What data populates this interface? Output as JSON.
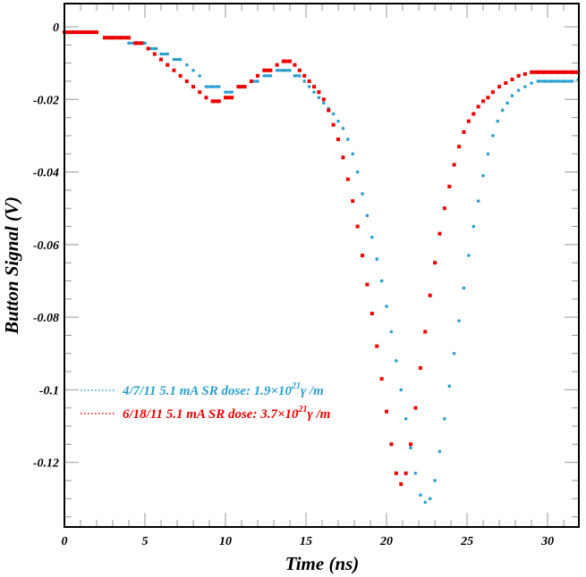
{
  "chart_data": {
    "type": "scatter",
    "title": "",
    "xlabel": "Time (ns)",
    "ylabel": "Button Signal (V)",
    "xlim": [
      0,
      31.94
    ],
    "ylim": [
      -0.1378,
      0.0064
    ],
    "x_ticks": [
      0,
      5,
      10,
      15,
      20,
      25,
      30
    ],
    "x_tick_labels": [
      "0",
      "5",
      "10",
      "15",
      "20",
      "25",
      "30"
    ],
    "y_ticks": [
      0,
      -0.02,
      -0.04,
      -0.06,
      -0.08,
      -0.1,
      -0.12
    ],
    "y_tick_labels": [
      "0",
      "-0.02",
      "-0.04",
      "-0.06",
      "-0.08",
      "-0.1",
      "-0.12"
    ],
    "grid": false,
    "legend_position": "lower-left",
    "series": [
      {
        "name": "4/7/11 5.1 mA  SR dose: 1.9×10^21 γ /m",
        "legend": {
          "prefix": "4/7/11 5.1 mA  SR dose: 1.9×10",
          "sup": "21",
          "suffix": "γ /m"
        },
        "color": "#2a9fcf",
        "marker": "dot",
        "x": [
          0,
          0.5,
          1,
          1.5,
          2,
          2.5,
          3,
          3.5,
          4,
          4.5,
          5,
          5.3,
          5.7,
          6,
          6.4,
          6.8,
          7.2,
          7.6,
          8,
          8.4,
          8.8,
          9.2,
          9.6,
          10,
          10.4,
          10.8,
          11.2,
          11.6,
          12,
          12.4,
          12.8,
          13.2,
          13.6,
          14,
          14.3,
          14.6,
          14.9,
          15.2,
          15.5,
          15.8,
          16.1,
          16.4,
          16.7,
          17,
          17.3,
          17.6,
          17.9,
          18.2,
          18.5,
          18.8,
          19.1,
          19.4,
          19.7,
          20,
          20.3,
          20.6,
          20.9,
          21.2,
          21.5,
          21.8,
          22.1,
          22.4,
          22.7,
          23,
          23.3,
          23.6,
          23.9,
          24.2,
          24.5,
          24.8,
          25.1,
          25.4,
          25.7,
          26,
          26.3,
          26.6,
          26.9,
          27.2,
          27.5,
          27.8,
          28.2,
          28.6,
          29,
          29.4,
          29.8,
          30.2,
          30.6,
          31,
          31.5,
          31.9
        ],
        "y": [
          -0.0015,
          -0.0015,
          -0.0015,
          -0.0015,
          -0.0015,
          -0.003,
          -0.003,
          -0.003,
          -0.0045,
          -0.0045,
          -0.0045,
          -0.006,
          -0.006,
          -0.0075,
          -0.0075,
          -0.009,
          -0.009,
          -0.0105,
          -0.012,
          -0.0135,
          -0.0165,
          -0.0165,
          -0.0165,
          -0.018,
          -0.018,
          -0.0165,
          -0.0165,
          -0.015,
          -0.015,
          -0.0135,
          -0.0135,
          -0.012,
          -0.012,
          -0.012,
          -0.0135,
          -0.0135,
          -0.015,
          -0.0165,
          -0.018,
          -0.0195,
          -0.021,
          -0.0225,
          -0.024,
          -0.026,
          -0.028,
          -0.031,
          -0.035,
          -0.04,
          -0.046,
          -0.052,
          -0.058,
          -0.064,
          -0.07,
          -0.077,
          -0.084,
          -0.092,
          -0.1,
          -0.108,
          -0.116,
          -0.123,
          -0.129,
          -0.131,
          -0.13,
          -0.125,
          -0.117,
          -0.108,
          -0.099,
          -0.09,
          -0.081,
          -0.072,
          -0.063,
          -0.055,
          -0.048,
          -0.041,
          -0.035,
          -0.03,
          -0.026,
          -0.023,
          -0.021,
          -0.019,
          -0.0175,
          -0.0165,
          -0.0155,
          -0.015,
          -0.015,
          -0.015,
          -0.015,
          -0.015,
          -0.015,
          -0.0145
        ]
      },
      {
        "name": "6/18/11 5.1 mA  SR dose: 3.7×10^21 γ /m",
        "legend": {
          "prefix": "6/18/11 5.1 mA  SR dose: 3.7×10",
          "sup": "21",
          "suffix": "γ /m"
        },
        "color": "#ee0000",
        "marker": "square",
        "x": [
          0,
          0.5,
          1,
          1.5,
          2,
          2.5,
          3,
          3.5,
          4,
          4.4,
          4.8,
          5.2,
          5.6,
          6,
          6.4,
          6.8,
          7.2,
          7.6,
          8,
          8.4,
          8.8,
          9.2,
          9.6,
          10,
          10.4,
          10.8,
          11.2,
          11.6,
          12,
          12.4,
          12.8,
          13.2,
          13.6,
          14,
          14.3,
          14.6,
          14.9,
          15.2,
          15.5,
          15.8,
          16.1,
          16.4,
          16.7,
          17,
          17.3,
          17.6,
          17.9,
          18.2,
          18.5,
          18.8,
          19.1,
          19.4,
          19.7,
          20,
          20.3,
          20.6,
          20.9,
          21.2,
          21.5,
          21.8,
          22.1,
          22.4,
          22.7,
          23,
          23.3,
          23.6,
          23.9,
          24.2,
          24.5,
          24.8,
          25.1,
          25.4,
          25.7,
          26,
          26.3,
          26.6,
          27,
          27.4,
          27.8,
          28.2,
          28.6,
          29,
          29.4,
          29.8,
          30.2,
          30.6,
          31,
          31.5,
          31.9
        ],
        "y": [
          -0.0015,
          -0.0015,
          -0.0015,
          -0.0015,
          -0.0015,
          -0.003,
          -0.003,
          -0.003,
          -0.003,
          -0.0045,
          -0.0045,
          -0.006,
          -0.0075,
          -0.009,
          -0.0105,
          -0.012,
          -0.0135,
          -0.015,
          -0.0165,
          -0.018,
          -0.0195,
          -0.0205,
          -0.0205,
          -0.0195,
          -0.0195,
          -0.0165,
          -0.0165,
          -0.015,
          -0.0135,
          -0.012,
          -0.012,
          -0.0105,
          -0.0095,
          -0.0095,
          -0.0105,
          -0.012,
          -0.0135,
          -0.015,
          -0.0165,
          -0.018,
          -0.02,
          -0.023,
          -0.027,
          -0.031,
          -0.036,
          -0.042,
          -0.048,
          -0.055,
          -0.063,
          -0.071,
          -0.079,
          -0.088,
          -0.097,
          -0.106,
          -0.115,
          -0.123,
          -0.126,
          -0.123,
          -0.115,
          -0.105,
          -0.094,
          -0.084,
          -0.074,
          -0.065,
          -0.057,
          -0.05,
          -0.044,
          -0.038,
          -0.033,
          -0.029,
          -0.026,
          -0.024,
          -0.022,
          -0.0205,
          -0.0195,
          -0.018,
          -0.0165,
          -0.0155,
          -0.0145,
          -0.0135,
          -0.013,
          -0.0125,
          -0.0125,
          -0.0125,
          -0.0125,
          -0.0125,
          -0.0125,
          -0.0125,
          -0.0125
        ]
      }
    ]
  }
}
